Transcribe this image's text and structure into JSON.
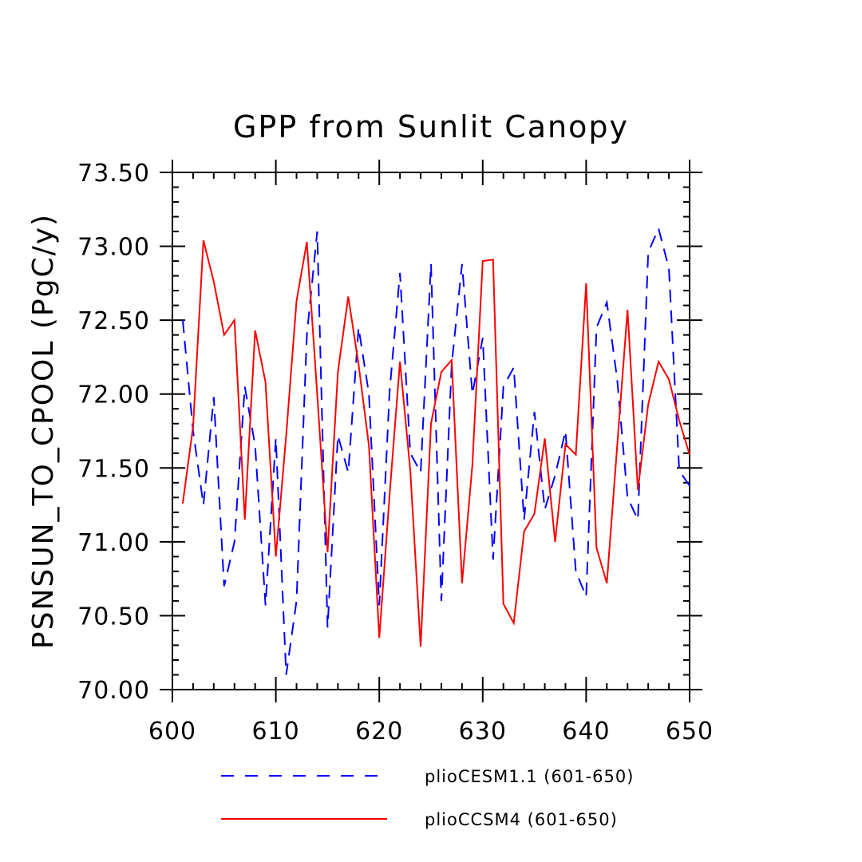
{
  "chart_data": {
    "type": "line",
    "title": "GPP from Sunlit Canopy",
    "xlabel": "",
    "ylabel": "PSNSUN_TO_CPOOL  (PgC/y)",
    "xlim": [
      600,
      650
    ],
    "ylim": [
      70.0,
      73.5
    ],
    "x_ticks": [
      "600",
      "610",
      "620",
      "630",
      "640",
      "650"
    ],
    "y_ticks": [
      "70.00",
      "70.50",
      "71.00",
      "71.50",
      "72.00",
      "72.50",
      "73.00",
      "73.50"
    ],
    "grid": false,
    "legend_position": "bottom",
    "x": [
      601,
      602,
      603,
      604,
      605,
      606,
      607,
      608,
      609,
      610,
      611,
      612,
      613,
      614,
      615,
      616,
      617,
      618,
      619,
      620,
      621,
      622,
      623,
      624,
      625,
      626,
      627,
      628,
      629,
      630,
      631,
      632,
      633,
      634,
      635,
      636,
      637,
      638,
      639,
      640,
      641,
      642,
      643,
      644,
      645,
      646,
      647,
      648,
      649,
      650
    ],
    "series": [
      {
        "name": "plioCESM1.1 (601-650)",
        "color": "#0000ff",
        "dash": "dashed",
        "values": [
          72.5,
          71.75,
          71.25,
          71.98,
          70.7,
          71.0,
          72.05,
          71.65,
          70.57,
          71.7,
          70.1,
          70.6,
          72.4,
          73.1,
          70.42,
          71.72,
          71.47,
          72.45,
          72.0,
          70.57,
          72.02,
          72.82,
          71.6,
          71.47,
          72.88,
          70.6,
          72.2,
          72.88,
          72.0,
          72.38,
          70.88,
          72.05,
          72.18,
          71.15,
          71.88,
          71.22,
          71.45,
          71.75,
          70.8,
          70.63,
          72.45,
          72.62,
          72.1,
          71.3,
          71.15,
          72.96,
          73.12,
          72.85,
          71.48,
          71.38
        ]
      },
      {
        "name": "plioCCSM4 (601-650)",
        "color": "#ff0000",
        "dash": "solid",
        "values": [
          71.26,
          71.78,
          73.04,
          72.76,
          72.4,
          72.5,
          71.15,
          72.43,
          72.08,
          70.9,
          71.72,
          72.63,
          73.03,
          72.0,
          70.93,
          72.15,
          72.66,
          72.2,
          71.65,
          70.35,
          71.32,
          72.22,
          71.48,
          70.29,
          71.8,
          72.15,
          72.23,
          70.72,
          71.52,
          72.9,
          72.91,
          70.58,
          70.45,
          71.07,
          71.19,
          71.7,
          71.0,
          71.66,
          71.59,
          72.75,
          70.96,
          70.72,
          71.65,
          72.57,
          71.35,
          71.93,
          72.22,
          72.1,
          71.82,
          71.59
        ]
      }
    ]
  }
}
